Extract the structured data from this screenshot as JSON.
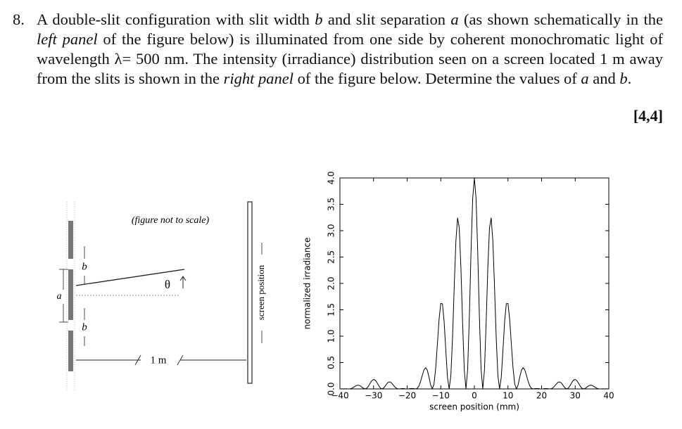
{
  "question": {
    "number": "8.",
    "text": [
      "A double-slit configuration with slit width ",
      "b",
      " and slit separation ",
      "a",
      " (as shown schematically in the ",
      "left panel",
      " of the figure below) is illuminated from one side by coherent monochromatic light of wavelength λ= 500 nm. The intensity (irradiance) distribution seen on a screen located 1 m away from the slits is shown in the ",
      "right panel",
      " of the figure below. Determine the values of ",
      "a",
      " and ",
      "b",
      "."
    ],
    "marks": "[4,4]"
  },
  "figure": {
    "note": "(figure not to scale)",
    "slit_width_upper": "b",
    "slit_width_lower": "b",
    "separation": "a",
    "angle": "θ",
    "distance": "1 m",
    "screen": "screen position"
  },
  "chart_data": {
    "type": "line",
    "xlabel": "screen position (mm)",
    "ylabel": "normalized irradiance",
    "color": "#000000",
    "x": [
      -40,
      -39.5,
      -39,
      -38.5,
      -38,
      -37.5,
      -37,
      -36.5,
      -36,
      -35.5,
      -35,
      -34.5,
      -34,
      -33.5,
      -33,
      -32.5,
      -32,
      -31.5,
      -31,
      -30.5,
      -30,
      -29.5,
      -29,
      -28.5,
      -28,
      -27.5,
      -27,
      -26.5,
      -26,
      -25.5,
      -25,
      -24.5,
      -24,
      -23.5,
      -23,
      -22.5,
      -22,
      -21.5,
      -21,
      -20.5,
      -20,
      -19.5,
      -19,
      -18.5,
      -18,
      -17.5,
      -17,
      -16.5,
      -16,
      -15.5,
      -15,
      -14.5,
      -14,
      -13.5,
      -13,
      -12.5,
      -12,
      -11.5,
      -11,
      -10.5,
      -10,
      -9.5,
      -9,
      -8.5,
      -8,
      -7.5,
      -7,
      -6.5,
      -6,
      -5.5,
      -5,
      -4.5,
      -4,
      -3.5,
      -3,
      -2.5,
      -2,
      -1.5,
      -1,
      -0.5,
      0,
      0.5,
      1,
      1.5,
      2,
      2.5,
      3,
      3.5,
      4,
      4.5,
      5,
      5.5,
      6,
      6.5,
      7,
      7.5,
      8,
      8.5,
      9,
      9.5,
      10,
      10.5,
      11,
      11.5,
      12,
      12.5,
      13,
      13.5,
      14,
      14.5,
      15,
      15.5,
      16,
      16.5,
      17,
      17.5,
      18,
      18.5,
      19,
      19.5,
      20,
      20.5,
      21,
      21.5,
      22,
      22.5,
      23,
      23.5,
      24,
      24.5,
      25,
      25.5,
      26,
      26.5,
      27,
      27.5,
      28,
      28.5,
      29,
      29.5,
      30,
      30.5,
      31,
      31.5,
      32,
      32.5,
      33,
      33.5,
      34,
      34.5,
      35,
      35.5,
      36,
      36.5,
      37,
      37.5,
      38,
      38.5,
      39,
      39.5,
      40
    ],
    "values": [
      0,
      0.001,
      0.002,
      0.002,
      0.001,
      0,
      0.002,
      0.011,
      0.028,
      0.049,
      0.066,
      0.071,
      0.06,
      0.036,
      0.011,
      0,
      0.014,
      0.053,
      0.108,
      0.157,
      0.18,
      0.167,
      0.123,
      0.065,
      0.018,
      0,
      0.017,
      0.058,
      0.103,
      0.13,
      0.13,
      0.103,
      0.064,
      0.028,
      0.006,
      0,
      0.003,
      0.007,
      0.006,
      0.002,
      0,
      0.002,
      0.007,
      0.009,
      0.005,
      0,
      0.011,
      0.056,
      0.143,
      0.257,
      0.36,
      0.403,
      0.354,
      0.223,
      0.073,
      0,
      0.097,
      0.401,
      0.855,
      1.322,
      1.621,
      1.615,
      1.278,
      0.733,
      0.219,
      0,
      0.251,
      0.964,
      1.929,
      2.803,
      3.242,
      3.054,
      2.291,
      1.248,
      0.355,
      0,
      0.37,
      1.357,
      2.597,
      3.611,
      4,
      3.611,
      2.597,
      1.357,
      0.37,
      0,
      0.355,
      1.248,
      2.291,
      3.054,
      3.242,
      2.803,
      1.929,
      0.964,
      0.251,
      0,
      0.219,
      0.733,
      1.278,
      1.615,
      1.621,
      1.322,
      0.855,
      0.401,
      0.097,
      0,
      0.073,
      0.223,
      0.354,
      0.403,
      0.36,
      0.257,
      0.143,
      0.056,
      0.011,
      0,
      0.005,
      0.009,
      0.007,
      0.002,
      0,
      0.002,
      0.006,
      0.007,
      0.003,
      0,
      0.006,
      0.028,
      0.064,
      0.103,
      0.13,
      0.13,
      0.103,
      0.058,
      0.017,
      0,
      0.018,
      0.065,
      0.123,
      0.167,
      0.18,
      0.157,
      0.108,
      0.053,
      0.014,
      0,
      0.011,
      0.036,
      0.06,
      0.071,
      0.066,
      0.049,
      0.028,
      0.011,
      0.002,
      0,
      0.001,
      0.002,
      0.002,
      0.001,
      0
    ],
    "xlim": [
      -40,
      40
    ],
    "ylim": [
      0,
      4
    ],
    "xticks": [
      {
        "value": -40,
        "label": "−40"
      },
      {
        "value": -30,
        "label": "−30"
      },
      {
        "value": -20,
        "label": "−20"
      },
      {
        "value": -10,
        "label": "−10"
      },
      0,
      10,
      20,
      30,
      40
    ],
    "yticks": [
      {
        "value": 0,
        "label": "0.0"
      },
      0.5,
      {
        "value": 1,
        "label": "1.0"
      },
      1.5,
      {
        "value": 2,
        "label": "2.0"
      },
      2.5,
      {
        "value": 3,
        "label": "3.0"
      },
      3.5,
      {
        "value": 4,
        "label": "4.0"
      }
    ]
  }
}
